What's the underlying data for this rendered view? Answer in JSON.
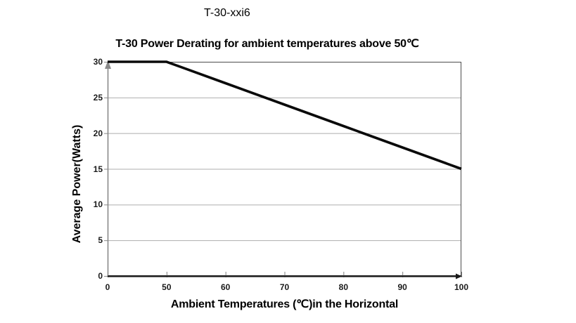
{
  "page": {
    "heading": "T-30-xxi6"
  },
  "chart_data": {
    "type": "line",
    "title": "T-30 Power Derating for ambient temperatures above 50℃",
    "xlabel": "Ambient Temperatures (℃)in the Horizontal",
    "ylabel": "Average Power(Watts)",
    "x_axis_type": "category",
    "categories": [
      "0",
      "50",
      "60",
      "70",
      "80",
      "90",
      "100"
    ],
    "series": [
      {
        "name": "T-30 power derating",
        "values": [
          30,
          30,
          27,
          24,
          21,
          18,
          15
        ]
      }
    ],
    "y_ticks": [
      0,
      5,
      10,
      15,
      20,
      25,
      30
    ],
    "ylim": [
      0,
      30
    ],
    "grid": "horizontal",
    "legend": "none",
    "colors": {
      "line": "#0a0a0a",
      "gridline": "#aeaeae",
      "plot_border": "#4d4d4d",
      "y_axis": "#898989",
      "x_axis": "#1a1a1a",
      "tick": "#7f7f7f",
      "text": "#000000"
    }
  }
}
